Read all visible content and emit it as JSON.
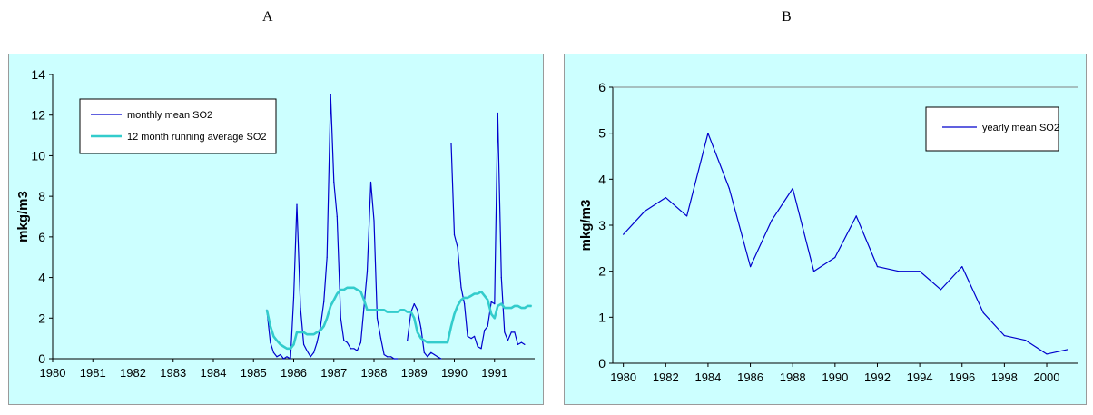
{
  "panels": {
    "a_label": "A",
    "b_label": "B"
  },
  "colors": {
    "background": "#ccffff",
    "monthly_line": "#0000cc",
    "running_avg_line": "#33cccc",
    "yearly_line": "#0000cc"
  },
  "chart_data": [
    {
      "type": "line",
      "panel": "A",
      "ylabel": "mkg/m3",
      "xlabel": "",
      "ylim": [
        0,
        14
      ],
      "yticks": [
        "0",
        "2",
        "4",
        "6",
        "8",
        "10",
        "12",
        "14"
      ],
      "xlim": [
        1980,
        1992
      ],
      "xticks": [
        "1980",
        "1981",
        "1982",
        "1983",
        "1984",
        "1985",
        "1986",
        "1987",
        "1988",
        "1989",
        "1990",
        "1991"
      ],
      "grid": false,
      "legend": "top-left",
      "series": [
        {
          "name": "monthly mean SO2",
          "segments": [
            {
              "x": [
                1985.33,
                1985.42,
                1985.5,
                1985.58,
                1985.67,
                1985.75,
                1985.83,
                1985.92,
                1986.0,
                1986.08,
                1986.17,
                1986.25,
                1986.33,
                1986.42,
                1986.5,
                1986.58,
                1986.67,
                1986.75,
                1986.83,
                1986.92,
                1987.0,
                1987.08,
                1987.17,
                1987.25,
                1987.33,
                1987.42,
                1987.5,
                1987.58,
                1987.67,
                1987.75,
                1987.83,
                1987.92,
                1988.0,
                1988.08,
                1988.17,
                1988.25,
                1988.33,
                1988.42,
                1988.5,
                1988.58
              ],
              "y": [
                2.4,
                0.8,
                0.3,
                0.1,
                0.2,
                0.0,
                0.1,
                0.0,
                3.0,
                7.6,
                2.5,
                0.7,
                0.4,
                0.1,
                0.3,
                0.8,
                1.6,
                2.8,
                5.0,
                13.0,
                8.7,
                7.0,
                2.0,
                0.9,
                0.8,
                0.5,
                0.5,
                0.4,
                0.8,
                2.5,
                4.3,
                8.7,
                6.8,
                2.0,
                1.0,
                0.2,
                0.1,
                0.1,
                0.0,
                0.0
              ]
            },
            {
              "x": [
                1988.83,
                1988.92,
                1989.0,
                1989.08,
                1989.17,
                1989.25,
                1989.33,
                1989.42,
                1989.5,
                1989.58,
                1989.67
              ],
              "y": [
                0.9,
                2.3,
                2.7,
                2.4,
                1.5,
                0.3,
                0.1,
                0.3,
                0.2,
                0.1,
                0.0
              ]
            },
            {
              "x": [
                1989.92,
                1990.0,
                1990.08,
                1990.17,
                1990.25,
                1990.33,
                1990.42,
                1990.5,
                1990.58,
                1990.67,
                1990.75,
                1990.83,
                1990.92,
                1991.0,
                1991.08,
                1991.17,
                1991.25,
                1991.33,
                1991.42,
                1991.5,
                1991.58,
                1991.67,
                1991.75
              ],
              "y": [
                10.6,
                6.1,
                5.5,
                3.5,
                2.7,
                1.1,
                1.0,
                1.1,
                0.6,
                0.5,
                1.4,
                1.6,
                2.8,
                2.7,
                12.1,
                4.0,
                1.3,
                0.9,
                1.3,
                1.3,
                0.7,
                0.8,
                0.7
              ]
            }
          ]
        },
        {
          "name": "12 month running average SO2",
          "x": [
            1985.33,
            1985.42,
            1985.5,
            1985.58,
            1985.67,
            1985.75,
            1985.83,
            1985.92,
            1986.0,
            1986.08,
            1986.17,
            1986.25,
            1986.33,
            1986.42,
            1986.5,
            1986.58,
            1986.67,
            1986.75,
            1986.83,
            1986.92,
            1987.0,
            1987.08,
            1987.17,
            1987.25,
            1987.33,
            1987.42,
            1987.5,
            1987.58,
            1987.67,
            1987.75,
            1987.83,
            1987.92,
            1988.0,
            1988.08,
            1988.17,
            1988.25,
            1988.33,
            1988.42,
            1988.5,
            1988.58,
            1988.67,
            1988.75,
            1988.83,
            1988.92,
            1989.0,
            1989.08,
            1989.17,
            1989.25,
            1989.33,
            1989.42,
            1989.5,
            1989.58,
            1989.67,
            1989.75,
            1989.83,
            1989.92,
            1990.0,
            1990.08,
            1990.17,
            1990.25,
            1990.33,
            1990.42,
            1990.5,
            1990.58,
            1990.67,
            1990.75,
            1990.83,
            1990.92,
            1991.0,
            1991.08,
            1991.17,
            1991.25,
            1991.33,
            1991.42,
            1991.5,
            1991.58,
            1991.67,
            1991.75,
            1991.83,
            1991.92
          ],
          "y": [
            2.4,
            1.6,
            1.1,
            0.9,
            0.7,
            0.6,
            0.5,
            0.5,
            0.7,
            1.3,
            1.3,
            1.3,
            1.2,
            1.2,
            1.2,
            1.3,
            1.4,
            1.6,
            2.0,
            2.6,
            2.9,
            3.2,
            3.4,
            3.4,
            3.5,
            3.5,
            3.5,
            3.4,
            3.3,
            2.9,
            2.4,
            2.4,
            2.4,
            2.4,
            2.4,
            2.4,
            2.3,
            2.3,
            2.3,
            2.3,
            2.4,
            2.4,
            2.3,
            2.3,
            2.0,
            1.3,
            1.0,
            0.9,
            0.8,
            0.8,
            0.8,
            0.8,
            0.8,
            0.8,
            0.8,
            1.6,
            2.2,
            2.6,
            2.9,
            3.0,
            3.0,
            3.1,
            3.2,
            3.2,
            3.3,
            3.1,
            2.9,
            2.2,
            2.0,
            2.6,
            2.7,
            2.5,
            2.5,
            2.5,
            2.6,
            2.6,
            2.5,
            2.5,
            2.6,
            2.6
          ]
        }
      ]
    },
    {
      "type": "line",
      "panel": "B",
      "ylabel": "mkg/m3",
      "xlabel": "",
      "ylim": [
        0,
        6
      ],
      "yticks": [
        "0",
        "1",
        "2",
        "3",
        "4",
        "5",
        "6"
      ],
      "xlim": [
        1979.5,
        2001.5
      ],
      "xticks": [
        "1980",
        "1982",
        "1984",
        "1986",
        "1988",
        "1990",
        "1992",
        "1994",
        "1996",
        "1998",
        "2000"
      ],
      "grid": false,
      "legend": "top-right",
      "series": [
        {
          "name": "yearly mean SO2",
          "x": [
            1980,
            1981,
            1982,
            1983,
            1984,
            1985,
            1986,
            1987,
            1988,
            1989,
            1990,
            1991,
            1992,
            1993,
            1994,
            1995,
            1996,
            1997,
            1998,
            1999,
            2000,
            2001
          ],
          "y": [
            2.8,
            3.3,
            3.6,
            3.2,
            5.0,
            3.8,
            2.1,
            3.1,
            3.8,
            2.0,
            2.3,
            3.2,
            2.1,
            2.0,
            2.0,
            1.6,
            2.1,
            1.1,
            0.6,
            0.5,
            0.2,
            0.3
          ]
        }
      ]
    }
  ]
}
